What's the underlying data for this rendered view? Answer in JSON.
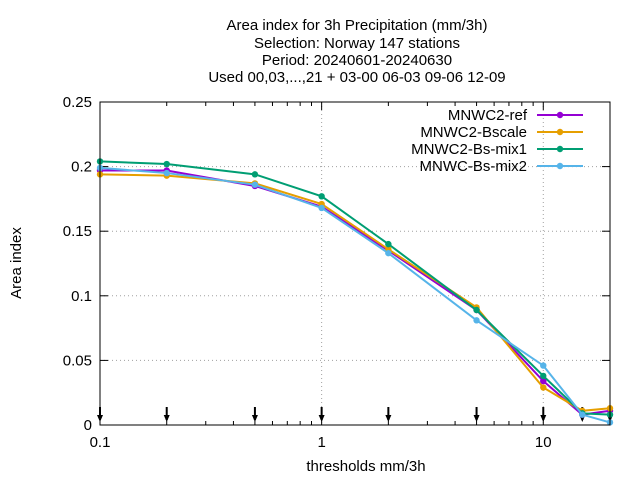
{
  "chart_data": {
    "type": "line",
    "title_lines": [
      "Area index  for 3h Precipitation (mm/3h)",
      "Selection: Norway    147 stations",
      "Period: 20240601-20240630",
      "Used 00,03,...,21 + 03-00 06-03 09-06 12-09"
    ],
    "xlabel": "thresholds mm/3h",
    "ylabel": "Area index",
    "xscale": "log",
    "xlim": [
      0.1,
      20
    ],
    "ylim": [
      0,
      0.25
    ],
    "xticks": [
      {
        "value": 0.1,
        "label": "0.1"
      },
      {
        "value": 1,
        "label": "1"
      },
      {
        "value": 10,
        "label": "10"
      }
    ],
    "yticks": [
      {
        "value": 0,
        "label": "0"
      },
      {
        "value": 0.05,
        "label": "0.05"
      },
      {
        "value": 0.1,
        "label": "0.1"
      },
      {
        "value": 0.15,
        "label": "0.15"
      },
      {
        "value": 0.2,
        "label": "0.2"
      },
      {
        "value": 0.25,
        "label": "0.25"
      }
    ],
    "grid": true,
    "legend_position": "top-right",
    "threshold_markers": [
      0.1,
      0.2,
      0.5,
      1,
      2,
      5,
      10,
      15,
      20
    ],
    "x": [
      0.1,
      0.2,
      0.5,
      1,
      2,
      5,
      10,
      15,
      20
    ],
    "series": [
      {
        "name": "MNWC2-ref",
        "color": "#9400d3",
        "values": [
          0.197,
          0.197,
          0.185,
          0.169,
          0.135,
          0.089,
          0.034,
          0.008,
          0.011
        ]
      },
      {
        "name": "MNWC2-Bscale",
        "color": "#e69f00",
        "values": [
          0.194,
          0.193,
          0.187,
          0.171,
          0.136,
          0.091,
          0.029,
          0.011,
          0.013
        ]
      },
      {
        "name": "MNWC2-Bs-mix1",
        "color": "#009e73",
        "values": [
          0.204,
          0.202,
          0.194,
          0.177,
          0.14,
          0.089,
          0.038,
          0.009,
          0.008
        ]
      },
      {
        "name": "MNWC-Bs-mix2",
        "color": "#56b4e9",
        "values": [
          0.199,
          0.195,
          0.186,
          0.168,
          0.133,
          0.081,
          0.046,
          0.008,
          0.002
        ]
      }
    ]
  }
}
